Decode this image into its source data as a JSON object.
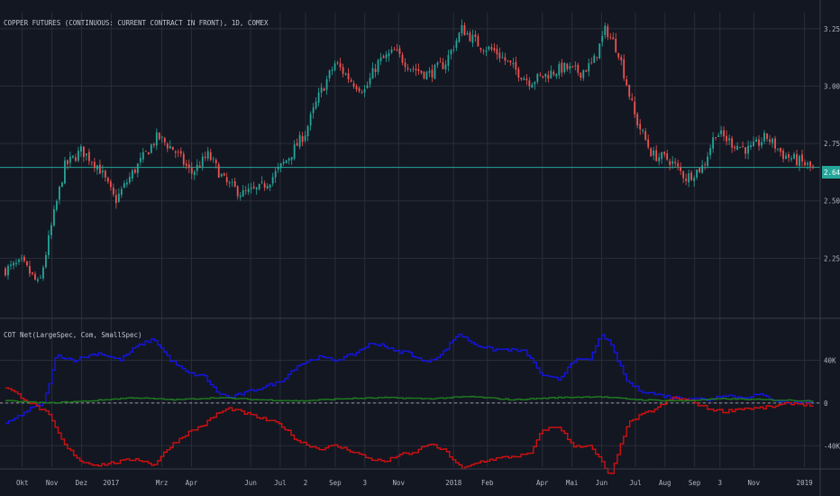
{
  "header": {
    "main_title": "COPPER FUTURES (CONTINUOUS: CURRENT CONTRACT IN FRONT), 1D, COMEX",
    "indicator_title": "COT Net(LargeSpec, Com, SmallSpec)"
  },
  "colors": {
    "background": "#131722",
    "grid": "#2a2e39",
    "candle_up": "#26a69a",
    "candle_down": "#ef5350",
    "price_line": "#26a69a",
    "large_spec": "#1414e0",
    "commercial": "#d01010",
    "small_spec": "#1f7a1f"
  },
  "price_badge": "2.6460",
  "chart_data": [
    {
      "type": "candlestick",
      "title": "COPPER FUTURES (CONTINUOUS: CURRENT CONTRACT IN FRONT), 1D, COMEX",
      "ylim": [
        2.0,
        3.32
      ],
      "y_ticks": [
        "3.2500",
        "3.0000",
        "2.7500",
        "2.5000",
        "2.2500"
      ],
      "y_tick_values": [
        3.25,
        3.0,
        2.75,
        2.5,
        2.25
      ],
      "last_price": 2.646,
      "anchors": [
        [
          0,
          2.2
        ],
        [
          4,
          2.23
        ],
        [
          8,
          2.13
        ],
        [
          11,
          2.4
        ],
        [
          14,
          2.65
        ],
        [
          18,
          2.72
        ],
        [
          22,
          2.65
        ],
        [
          26,
          2.5
        ],
        [
          30,
          2.62
        ],
        [
          33,
          2.7
        ],
        [
          36,
          2.78
        ],
        [
          40,
          2.72
        ],
        [
          44,
          2.62
        ],
        [
          48,
          2.7
        ],
        [
          52,
          2.58
        ],
        [
          56,
          2.53
        ],
        [
          60,
          2.55
        ],
        [
          63,
          2.6
        ],
        [
          67,
          2.69
        ],
        [
          71,
          2.8
        ],
        [
          74,
          2.95
        ],
        [
          78,
          3.1
        ],
        [
          82,
          3.02
        ],
        [
          85,
          2.98
        ],
        [
          88,
          3.1
        ],
        [
          92,
          3.15
        ],
        [
          96,
          3.08
        ],
        [
          100,
          3.05
        ],
        [
          104,
          3.1
        ],
        [
          108,
          3.25
        ],
        [
          112,
          3.18
        ],
        [
          116,
          3.15
        ],
        [
          120,
          3.08
        ],
        [
          124,
          3.02
        ],
        [
          128,
          3.05
        ],
        [
          132,
          3.08
        ],
        [
          136,
          3.06
        ],
        [
          139,
          3.1
        ],
        [
          142,
          3.25
        ],
        [
          145,
          3.15
        ],
        [
          149,
          2.86
        ],
        [
          153,
          2.7
        ],
        [
          157,
          2.68
        ],
        [
          161,
          2.6
        ],
        [
          165,
          2.65
        ],
        [
          168,
          2.8
        ],
        [
          172,
          2.75
        ],
        [
          176,
          2.72
        ],
        [
          180,
          2.78
        ],
        [
          184,
          2.7
        ],
        [
          188,
          2.67
        ],
        [
          191,
          2.64
        ]
      ],
      "x_range": [
        0,
        191
      ]
    },
    {
      "type": "line",
      "title": "COT Net(LargeSpec, Com, SmallSpec)",
      "ylim": [
        -60,
        75
      ],
      "y_ticks": [
        "40K",
        "0",
        "-40K"
      ],
      "y_tick_values": [
        40,
        0,
        -40
      ],
      "x_range": [
        0,
        191
      ],
      "series": [
        {
          "name": "LargeSpec",
          "color": "#1414e0",
          "values": [
            [
              0,
              -20
            ],
            [
              6,
              -5
            ],
            [
              9,
              0
            ],
            [
              12,
              45
            ],
            [
              16,
              40
            ],
            [
              22,
              47
            ],
            [
              27,
              40
            ],
            [
              31,
              53
            ],
            [
              35,
              60
            ],
            [
              39,
              40
            ],
            [
              43,
              28
            ],
            [
              47,
              25
            ],
            [
              50,
              10
            ],
            [
              53,
              5
            ],
            [
              57,
              10
            ],
            [
              61,
              15
            ],
            [
              65,
              20
            ],
            [
              69,
              35
            ],
            [
              74,
              43
            ],
            [
              78,
              40
            ],
            [
              82,
              45
            ],
            [
              86,
              55
            ],
            [
              89,
              55
            ],
            [
              92,
              48
            ],
            [
              95,
              48
            ],
            [
              99,
              38
            ],
            [
              103,
              45
            ],
            [
              107,
              65
            ],
            [
              111,
              55
            ],
            [
              115,
              50
            ],
            [
              119,
              50
            ],
            [
              123,
              48
            ],
            [
              127,
              25
            ],
            [
              131,
              22
            ],
            [
              134,
              40
            ],
            [
              138,
              40
            ],
            [
              141,
              65
            ],
            [
              143,
              55
            ],
            [
              147,
              20
            ],
            [
              150,
              12
            ],
            [
              154,
              8
            ],
            [
              158,
              5
            ],
            [
              162,
              5
            ],
            [
              166,
              3
            ],
            [
              170,
              8
            ],
            [
              174,
              5
            ],
            [
              178,
              8
            ],
            [
              182,
              3
            ],
            [
              186,
              0
            ],
            [
              191,
              2
            ]
          ]
        },
        {
          "name": "Com",
          "color": "#d01010",
          "values": [
            [
              0,
              15
            ],
            [
              6,
              0
            ],
            [
              10,
              -10
            ],
            [
              14,
              -40
            ],
            [
              18,
              -55
            ],
            [
              22,
              -58
            ],
            [
              27,
              -55
            ],
            [
              31,
              -52
            ],
            [
              35,
              -58
            ],
            [
              39,
              -40
            ],
            [
              43,
              -28
            ],
            [
              47,
              -20
            ],
            [
              50,
              -10
            ],
            [
              53,
              -5
            ],
            [
              57,
              -10
            ],
            [
              61,
              -15
            ],
            [
              65,
              -20
            ],
            [
              69,
              -35
            ],
            [
              74,
              -43
            ],
            [
              78,
              -40
            ],
            [
              82,
              -45
            ],
            [
              86,
              -52
            ],
            [
              90,
              -55
            ],
            [
              93,
              -48
            ],
            [
              96,
              -48
            ],
            [
              100,
              -38
            ],
            [
              104,
              -45
            ],
            [
              108,
              -62
            ],
            [
              112,
              -55
            ],
            [
              116,
              -52
            ],
            [
              120,
              -50
            ],
            [
              124,
              -48
            ],
            [
              127,
              -25
            ],
            [
              131,
              -22
            ],
            [
              134,
              -40
            ],
            [
              138,
              -40
            ],
            [
              141,
              -55
            ],
            [
              143,
              -70
            ],
            [
              147,
              -20
            ],
            [
              150,
              -12
            ],
            [
              154,
              -5
            ],
            [
              158,
              5
            ],
            [
              162,
              2
            ],
            [
              166,
              -5
            ],
            [
              170,
              -8
            ],
            [
              174,
              -5
            ],
            [
              178,
              -5
            ],
            [
              182,
              -3
            ],
            [
              186,
              0
            ],
            [
              191,
              -2
            ]
          ]
        },
        {
          "name": "SmallSpec",
          "color": "#1f7a1f",
          "values": [
            [
              0,
              2
            ],
            [
              10,
              0
            ],
            [
              20,
              2
            ],
            [
              30,
              5
            ],
            [
              40,
              3
            ],
            [
              50,
              5
            ],
            [
              60,
              3
            ],
            [
              70,
              2
            ],
            [
              80,
              4
            ],
            [
              90,
              5
            ],
            [
              100,
              4
            ],
            [
              110,
              6
            ],
            [
              120,
              3
            ],
            [
              130,
              5
            ],
            [
              140,
              6
            ],
            [
              150,
              3
            ],
            [
              160,
              2
            ],
            [
              170,
              4
            ],
            [
              180,
              3
            ],
            [
              191,
              2
            ]
          ]
        }
      ]
    }
  ],
  "x_axis": {
    "labels": [
      "Okt",
      "Nov",
      "Dez",
      "2017",
      "Mrz",
      "Apr",
      "Jun",
      "Jul",
      "2",
      "Sep",
      "3",
      "Nov",
      "2018",
      "Feb",
      "Apr",
      "Mai",
      "Jun",
      "Jul",
      "Aug",
      "Sep",
      "3",
      "Nov",
      "2019"
    ],
    "positions": [
      4,
      11,
      18,
      25,
      37,
      44,
      58,
      65,
      71,
      78,
      85,
      93,
      106,
      114,
      127,
      134,
      141,
      149,
      156,
      163,
      169,
      177,
      189
    ]
  }
}
